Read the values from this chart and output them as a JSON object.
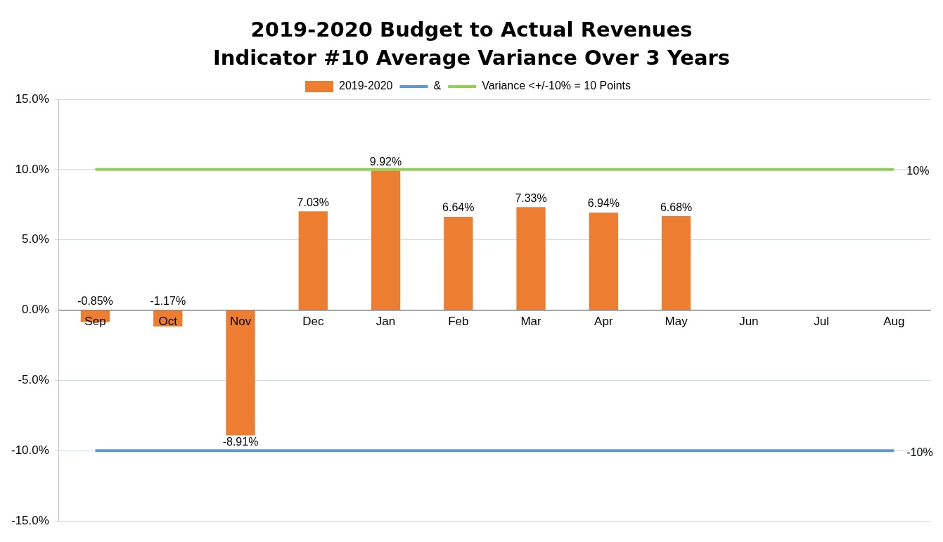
{
  "chart_data": {
    "type": "bar",
    "title": "2019-2020 Budget to Actual Revenues",
    "subtitle": "Indicator #10 Average Variance Over 3 Years",
    "categories": [
      "Sep",
      "Oct",
      "Nov",
      "Dec",
      "Jan",
      "Feb",
      "Mar",
      "Apr",
      "May",
      "Jun",
      "Jul",
      "Aug"
    ],
    "series": [
      {
        "name": "2019-2020",
        "color": "#ed7d31",
        "values": [
          -0.85,
          -1.17,
          -8.91,
          7.03,
          9.92,
          6.64,
          7.33,
          6.94,
          6.68,
          null,
          null,
          null
        ],
        "value_labels": [
          "-0.85%",
          "-1.17%",
          "-8.91%",
          "7.03%",
          "9.92%",
          "6.64%",
          "7.33%",
          "6.94%",
          "6.68%",
          null,
          null,
          null
        ]
      },
      {
        "name": "&",
        "type": "line",
        "color": "#5b9bd5",
        "values": [
          -10,
          -10,
          -10,
          -10,
          -10,
          -10,
          -10,
          -10,
          -10,
          -10,
          -10,
          -10
        ],
        "value_labels": [
          null,
          null,
          null,
          null,
          null,
          null,
          null,
          null,
          null,
          null,
          null,
          "-10%"
        ]
      },
      {
        "name": "Variance <+/-10% = 10 Points",
        "type": "line",
        "color": "#92d050",
        "values": [
          10,
          10,
          10,
          10,
          10,
          10,
          10,
          10,
          10,
          10,
          10,
          10
        ],
        "value_labels": [
          null,
          null,
          null,
          null,
          null,
          null,
          null,
          null,
          null,
          null,
          null,
          "10%"
        ]
      }
    ],
    "ylim": [
      -15,
      15
    ],
    "yticks": [
      {
        "value": -15,
        "label": "-15.0%"
      },
      {
        "value": -10,
        "label": "-10.0%"
      },
      {
        "value": -5,
        "label": "-5.0%"
      },
      {
        "value": 0,
        "label": "0.0%"
      },
      {
        "value": 5,
        "label": "5.0%"
      },
      {
        "value": 10,
        "label": "10.0%"
      },
      {
        "value": 15,
        "label": "15.0%"
      }
    ],
    "grid": "y",
    "legend": "top",
    "marker": "none"
  }
}
